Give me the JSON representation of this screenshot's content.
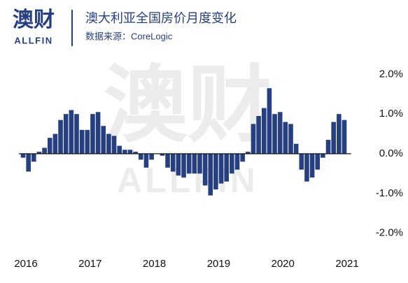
{
  "header": {
    "logo_cn": "澳财",
    "logo_en": "ALLFIN"
  },
  "watermark": {
    "cn": "澳财",
    "en": "ALLFIN"
  },
  "chart_data": {
    "type": "bar",
    "title": "澳大利亚全国房价月度变化",
    "subtitle": "数据来源：CoreLogic",
    "color": "#253f80",
    "categories": [
      "2016",
      null,
      null,
      null,
      null,
      null,
      null,
      null,
      null,
      null,
      null,
      null,
      "2017",
      null,
      null,
      null,
      null,
      null,
      null,
      null,
      null,
      null,
      null,
      null,
      "2018",
      null,
      null,
      null,
      null,
      null,
      null,
      null,
      null,
      null,
      null,
      null,
      "2019",
      null,
      null,
      null,
      null,
      null,
      null,
      null,
      null,
      null,
      null,
      null,
      "2020",
      null,
      null,
      null,
      null,
      null,
      null,
      null,
      null,
      null,
      null,
      null,
      "2021"
    ],
    "values": [
      -0.1,
      -0.45,
      -0.2,
      0.05,
      0.15,
      0.4,
      0.5,
      0.85,
      1.0,
      1.1,
      1.0,
      0.6,
      0.6,
      1.0,
      1.05,
      0.7,
      0.5,
      0.45,
      0.2,
      0.1,
      0.1,
      0.05,
      -0.15,
      -0.35,
      -0.15,
      0.0,
      -0.05,
      -0.35,
      -0.45,
      -0.55,
      -0.6,
      -0.5,
      -0.5,
      -0.5,
      -0.8,
      -1.05,
      -0.9,
      -0.75,
      -0.7,
      -0.5,
      -0.4,
      -0.2,
      0.05,
      0.75,
      0.95,
      1.15,
      1.65,
      1.0,
      1.05,
      0.8,
      0.75,
      0.25,
      -0.4,
      -0.7,
      -0.6,
      -0.4,
      -0.1,
      0.35,
      0.8,
      1.0,
      0.85
    ],
    "ylim": [
      -2.2,
      2.2
    ],
    "yticks": [
      {
        "value": 2,
        "label": "2.0%"
      },
      {
        "value": 1,
        "label": "1.0%"
      },
      {
        "value": 0,
        "label": "0.0%"
      },
      {
        "value": -1,
        "label": "-1.0%"
      },
      {
        "value": -2,
        "label": "-2.0%"
      }
    ],
    "grid": false
  }
}
